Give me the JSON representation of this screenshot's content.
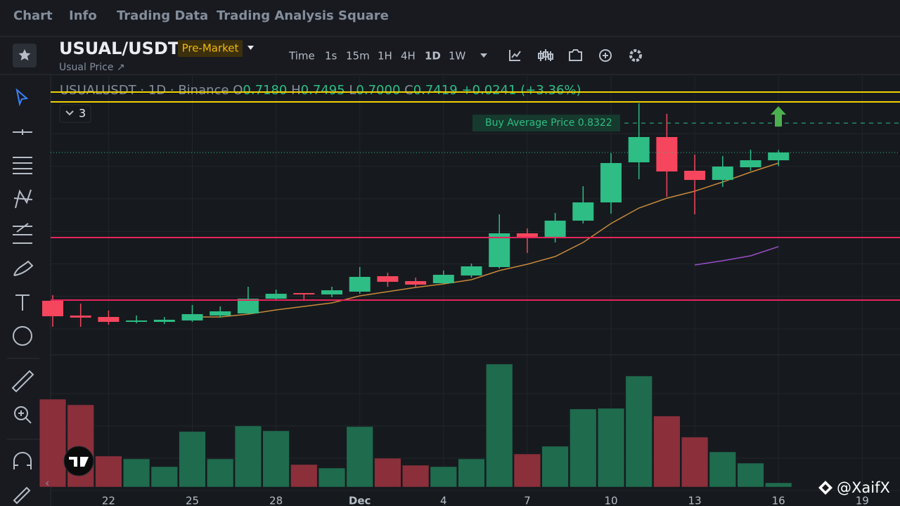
{
  "tabs": [
    "Chart",
    "Info",
    "Trading Data",
    "Trading Analysis",
    "Square"
  ],
  "header": {
    "symbol": "USUAL/USDT",
    "badge": "Pre-Market",
    "subtitle": "Usual Price ↗"
  },
  "intervals": [
    "Time",
    "1s",
    "15m",
    "1H",
    "4H",
    "1D",
    "1W"
  ],
  "legend": {
    "title": "USUALUSDT · 1D · Binance",
    "items": [
      {
        "label": "O",
        "value": "0.7180"
      },
      {
        "label": "H",
        "value": "0.7495"
      },
      {
        "label": "L",
        "value": "0.7000"
      },
      {
        "label": "C",
        "value": "0.7419"
      }
    ],
    "change": "+0.0241 (+3.36%)"
  },
  "indicator_count": 3,
  "buy_average": {
    "label": "Buy Average Price 0.8322",
    "value": 0.8322,
    "color": "#2ebd85"
  },
  "watermark": "@XaifX",
  "chart_data": {
    "type": "candlestick",
    "categories": [
      null,
      null,
      "22",
      null,
      null,
      "25",
      null,
      null,
      "28",
      null,
      null,
      "Dec",
      null,
      null,
      "4",
      null,
      null,
      "7",
      null,
      null,
      "10",
      null,
      null,
      "13",
      null,
      null,
      "16",
      null,
      null,
      "19"
    ],
    "open": [
      0.2861,
      0.2408,
      0.2364,
      0.2213,
      0.2213,
      0.2256,
      0.2408,
      0.2473,
      0.2926,
      0.3099,
      0.3056,
      0.3142,
      0.3617,
      0.3466,
      0.3401,
      0.3639,
      0.3898,
      0.4935,
      0.4827,
      0.5324,
      0.5885,
      0.7117,
      0.7894,
      0.6857,
      0.6576,
      0.6965,
      0.718,
      null,
      null,
      null
    ],
    "high": [
      0.3034,
      0.2775,
      0.2559,
      0.2408,
      0.2364,
      0.2732,
      0.2688,
      0.3293,
      0.3207,
      0.3099,
      0.3293,
      0.3898,
      0.3725,
      0.3574,
      0.379,
      0.4006,
      0.5518,
      0.5086,
      0.5561,
      0.6382,
      0.7397,
      0.8931,
      0.8607,
      0.7354,
      0.7311,
      0.7505,
      0.7495,
      null,
      null,
      null
    ],
    "low": [
      0.2062,
      0.2062,
      0.2127,
      0.217,
      0.2149,
      0.2213,
      0.2344,
      0.2451,
      0.2861,
      0.2883,
      0.297,
      0.3077,
      0.3293,
      0.325,
      0.338,
      0.3574,
      0.3855,
      0.433,
      0.4654,
      0.5237,
      0.554,
      0.6598,
      0.6058,
      0.5518,
      0.6361,
      0.6857,
      0.7,
      null,
      null,
      null
    ],
    "close": [
      0.2386,
      0.2344,
      0.2213,
      0.2256,
      0.2278,
      0.2451,
      0.2537,
      0.2926,
      0.3077,
      0.3056,
      0.3185,
      0.3596,
      0.3444,
      0.3358,
      0.366,
      0.3919,
      0.4935,
      0.4827,
      0.5324,
      0.5885,
      0.7095,
      0.7894,
      0.6836,
      0.6576,
      0.6987,
      0.7181,
      0.7419,
      null,
      null,
      null
    ],
    "volume": [
      125,
      117,
      44,
      40,
      29,
      79,
      40,
      87,
      80,
      32,
      27,
      86,
      41,
      31,
      29,
      40,
      175,
      47,
      58,
      111,
      112,
      158,
      101,
      71,
      50,
      34,
      6,
      null,
      null,
      null
    ],
    "ylim": [
      0.1306,
      0.9773
    ],
    "vlim": [
      0,
      180
    ],
    "up_color": "#2ebd85",
    "down_color": "#f6465d",
    "volume_up_color": "#1f6b4e",
    "volume_down_color": "#8b2f3b",
    "ma_lines": [
      {
        "color": "#c8893b",
        "values": [
          null,
          null,
          null,
          null,
          null,
          0.2364,
          0.2364,
          0.2451,
          0.258,
          0.2688,
          0.2797,
          0.3012,
          0.3142,
          0.3272,
          0.338,
          0.3509,
          0.379,
          0.3984,
          0.4222,
          0.4654,
          0.5237,
          0.5712,
          0.6015,
          0.6231,
          0.6512,
          0.6814,
          0.7095,
          null,
          null,
          null
        ]
      },
      {
        "color": "#9b4dca",
        "values": [
          null,
          null,
          null,
          null,
          null,
          null,
          null,
          null,
          null,
          null,
          null,
          null,
          null,
          null,
          null,
          null,
          null,
          null,
          null,
          null,
          null,
          null,
          null,
          0.3963,
          0.4092,
          0.4244,
          0.4525,
          null,
          null,
          null
        ]
      }
    ],
    "hlines": [
      {
        "value": 0.9277,
        "color": "#f0d000"
      },
      {
        "value": 0.8974,
        "color": "#f0d000"
      },
      {
        "value": 0.4806,
        "color": "#e6245c"
      },
      {
        "value": 0.2883,
        "color": "#e6245c"
      }
    ]
  }
}
